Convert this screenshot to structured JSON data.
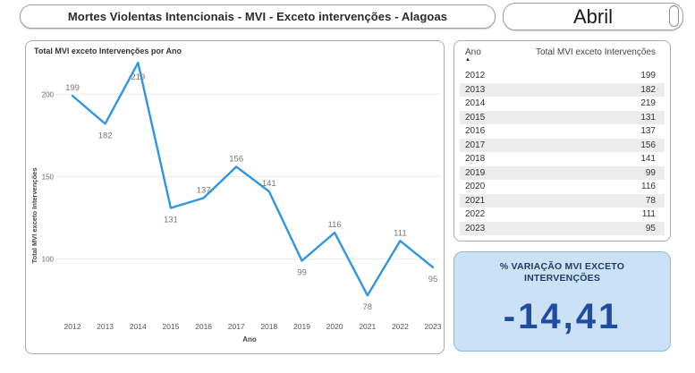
{
  "header": {
    "title": "Mortes Violentas Intencionais - MVI - Exceto intervenções - Alagoas",
    "month": "Abril"
  },
  "chart_data": {
    "type": "line",
    "title": "Total MVI exceto Intervenções por Ano",
    "xlabel": "Ano",
    "ylabel": "Total MVI exceto Intervenções",
    "categories": [
      "2012",
      "2013",
      "2014",
      "2015",
      "2016",
      "2017",
      "2018",
      "2019",
      "2020",
      "2021",
      "2022",
      "2023"
    ],
    "values": [
      199,
      182,
      219,
      131,
      137,
      156,
      141,
      99,
      116,
      78,
      111,
      95
    ],
    "yticks": [
      100,
      150,
      200
    ],
    "ylim": [
      64,
      224
    ],
    "grid": true,
    "legend": "none",
    "line_color": "#2e96e0",
    "label_color": "#767676",
    "label_positions": [
      "above",
      "below",
      "inside",
      "below",
      "above",
      "above",
      "above",
      "below",
      "above",
      "below",
      "above",
      "below"
    ]
  },
  "table": {
    "columns": [
      "Ano",
      "Total MVI exceto Intervenções"
    ],
    "sort": {
      "column": "Ano",
      "direction": "ascending",
      "icon": "▲"
    },
    "rows": [
      [
        "2012",
        "199"
      ],
      [
        "2013",
        "182"
      ],
      [
        "2014",
        "219"
      ],
      [
        "2015",
        "131"
      ],
      [
        "2016",
        "137"
      ],
      [
        "2017",
        "156"
      ],
      [
        "2018",
        "141"
      ],
      [
        "2019",
        "99"
      ],
      [
        "2020",
        "116"
      ],
      [
        "2021",
        "78"
      ],
      [
        "2022",
        "111"
      ],
      [
        "2023",
        "95"
      ]
    ]
  },
  "card": {
    "label": "% VARIAÇÃO MVI EXCETO INTERVENÇÕES",
    "value": "-14,41"
  },
  "colors": {
    "line": "#2e96e0",
    "grid": "#e8e8e8",
    "card_bg": "#cbe2f6",
    "card_border": "#8fb7d8",
    "card_text": "#1e3c5f",
    "card_value": "#1f4ba3",
    "table_stripe": "#ececec",
    "panel_border": "#ababab"
  }
}
